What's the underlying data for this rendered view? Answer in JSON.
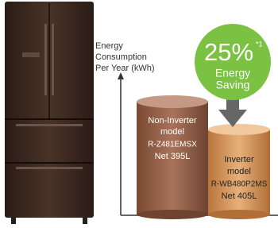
{
  "axis_label": {
    "lines": [
      "Energy",
      "Consumption",
      "Per Year (kWh)"
    ]
  },
  "badge": {
    "value": "25%",
    "footnote": "*1",
    "lines": [
      "Energy",
      "Saving"
    ]
  },
  "cylinders": [
    {
      "lines": [
        "Non-Inverter",
        "model",
        "R-Z481EMSX",
        "Net 395L"
      ]
    },
    {
      "lines": [
        "Inverter",
        "model",
        "R-WB480P2MS",
        "Net 405L"
      ]
    }
  ]
}
